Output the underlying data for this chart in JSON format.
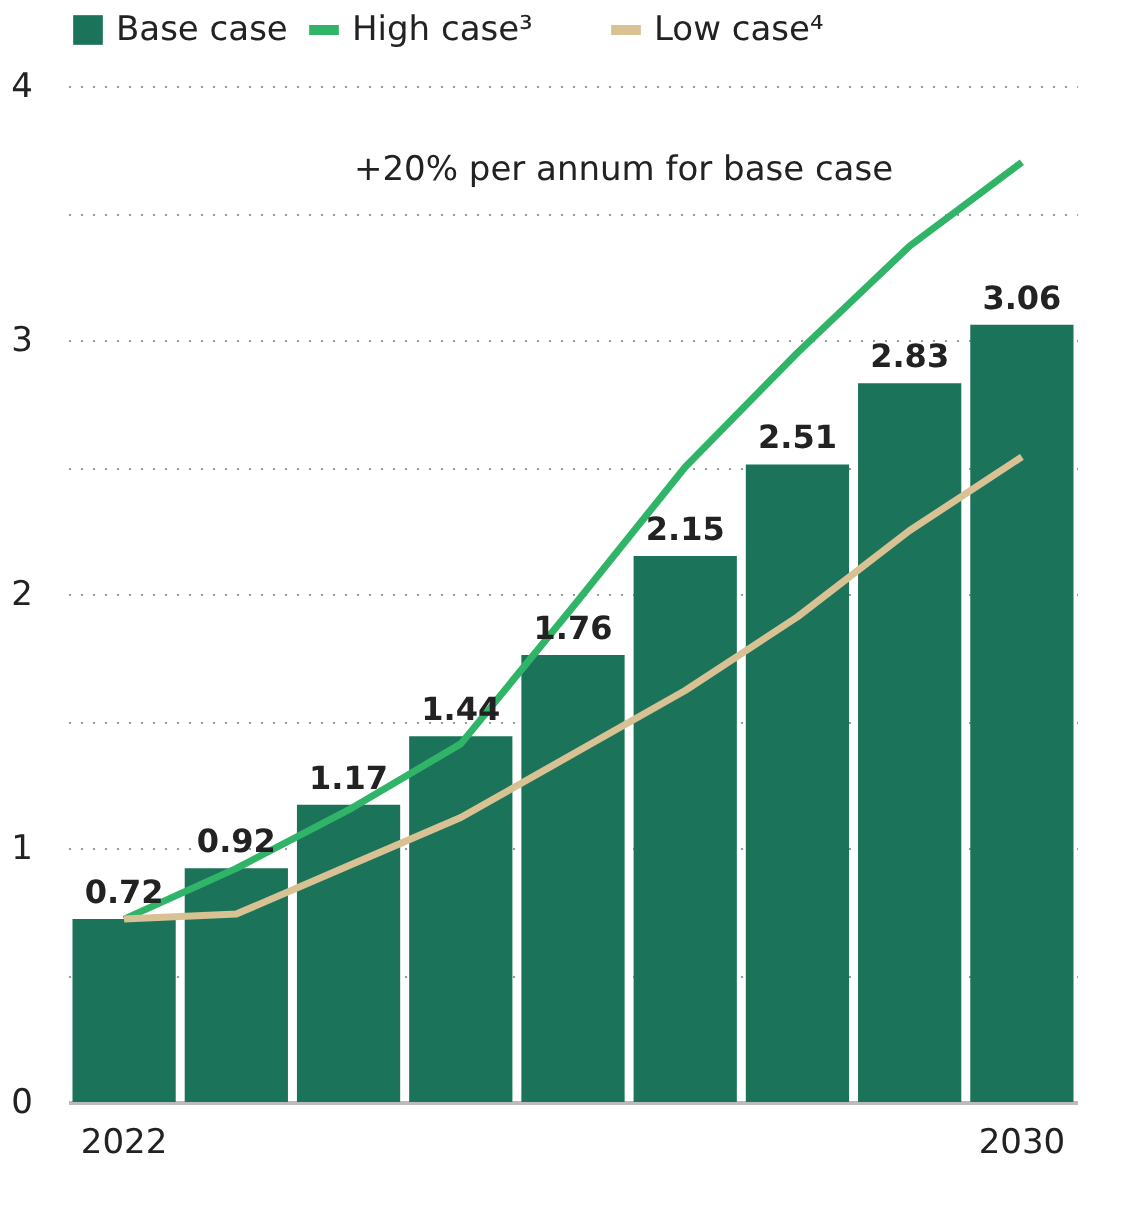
{
  "chart_data": {
    "type": "bar",
    "categories": [
      "2022",
      null,
      null,
      null,
      null,
      null,
      null,
      null,
      "2030"
    ],
    "series": [
      {
        "name": "Base case",
        "color": "#1b7359",
        "values": [
          0.72,
          0.92,
          1.17,
          1.44,
          1.76,
          2.15,
          2.51,
          2.83,
          3.06
        ],
        "value_labels": [
          "0.72",
          "0.92",
          "1.17",
          "1.44",
          "1.76",
          "2.15",
          "2.51",
          "2.83",
          "3.06"
        ]
      },
      {
        "name": "High case³",
        "type": "line",
        "color": "#2fb468",
        "values": [
          0.72,
          0.92,
          1.15,
          1.41,
          1.95,
          2.5,
          2.95,
          3.37,
          3.7
        ]
      },
      {
        "name": "Low case⁴",
        "type": "line",
        "color": "#d8c192",
        "values": [
          0.72,
          0.74,
          0.93,
          1.12,
          1.37,
          1.62,
          1.91,
          2.25,
          2.54
        ]
      }
    ],
    "ylim": [
      0,
      4
    ],
    "yticks": [
      0,
      {
        "value": 0.5,
        "label": null
      },
      1,
      {
        "value": 1.5,
        "label": null
      },
      2,
      {
        "value": 2.5,
        "label": null
      },
      3,
      {
        "value": 3.5,
        "label": null
      },
      4
    ],
    "grid": "y",
    "legend": "top left",
    "annotations": [
      "+20% per annum for base case"
    ]
  }
}
